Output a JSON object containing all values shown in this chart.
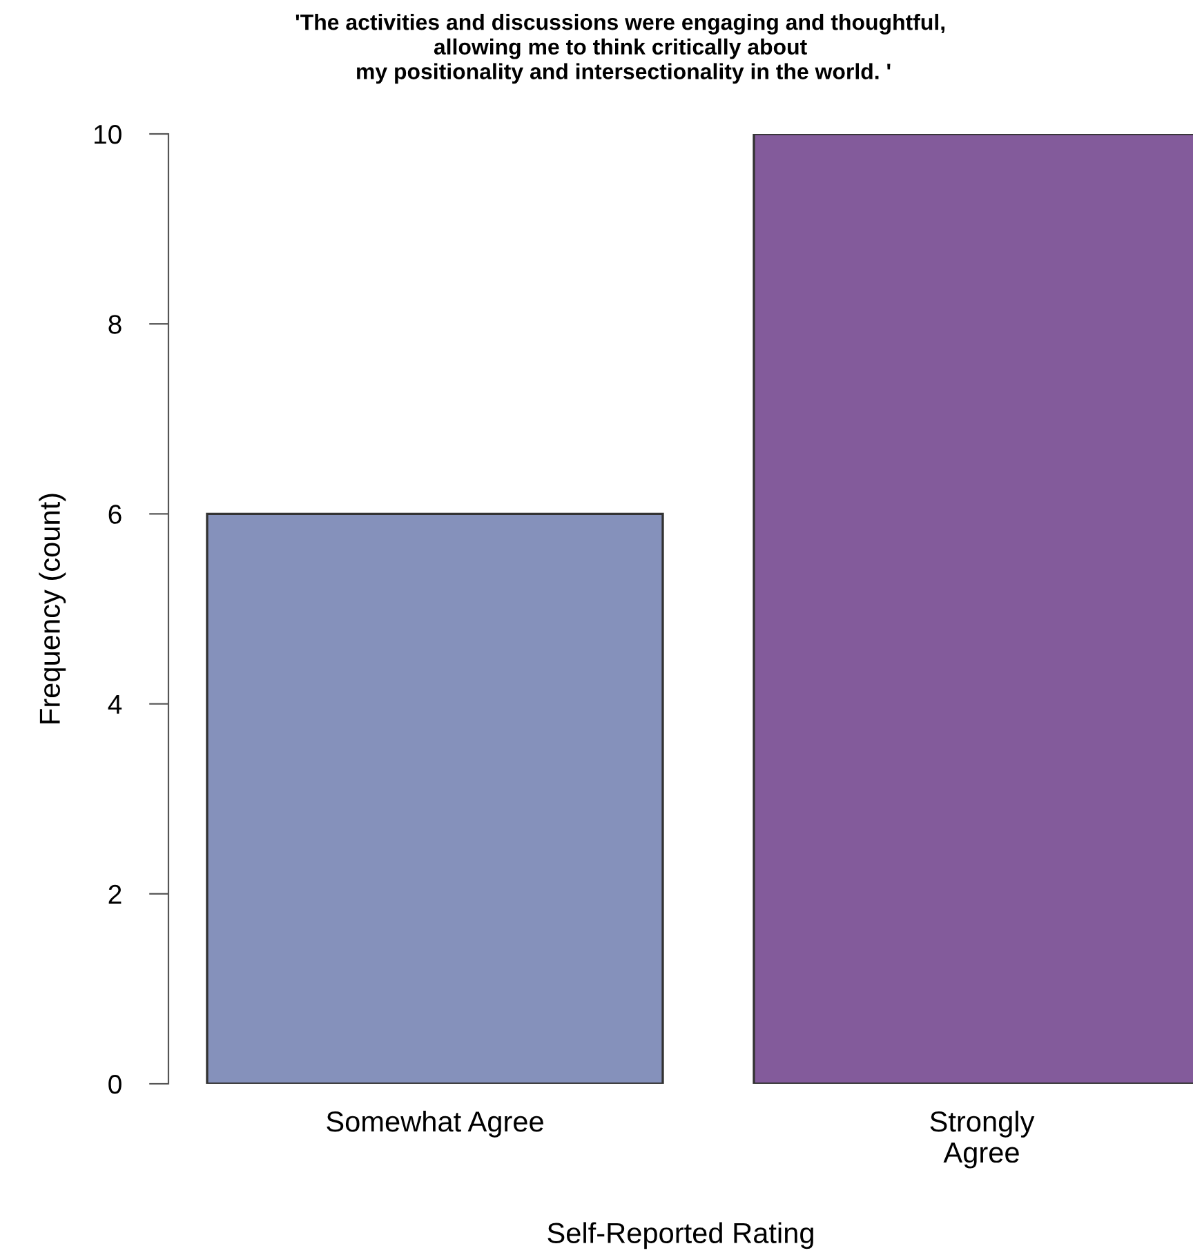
{
  "chart_data": {
    "type": "bar",
    "title": "'The activities and discussions were engaging and thoughtful,\nallowing me to think critically about\n my positionality and intersectionality in the world. '",
    "xlabel": "Self-Reported Rating",
    "ylabel": "Frequency (count)",
    "categories": [
      "Somewhat Agree",
      "Strongly\nAgree"
    ],
    "values": [
      6,
      10
    ],
    "colors": [
      "#8591bb",
      "#835b9b"
    ],
    "ylim": [
      0,
      10
    ],
    "yticks": [
      0,
      2,
      4,
      6,
      8,
      10
    ],
    "grid": false
  }
}
